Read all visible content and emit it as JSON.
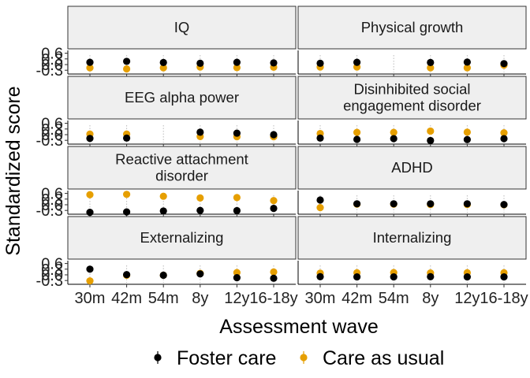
{
  "chart_data": {
    "type": "scatter",
    "xlabel": "Assessment wave",
    "ylabel": "Standardized score",
    "categories": [
      "30m",
      "42m",
      "54m",
      "8y",
      "12y",
      "16-18y"
    ],
    "ylim": [
      -0.5,
      0.75
    ],
    "yticks": [
      0.6,
      0.3,
      0.0,
      -0.3
    ],
    "ytick_labels": [
      "0.6",
      "0.3",
      "0.0",
      "-0.3"
    ],
    "legend": {
      "position": "bottom",
      "items": [
        {
          "label": "Foster care",
          "color": "#000000"
        },
        {
          "label": "Care as usual",
          "color": "#E69F00"
        }
      ]
    },
    "panels": [
      {
        "title": [
          "IQ"
        ],
        "series": [
          {
            "name": "Foster care",
            "values": [
              0.12,
              0.17,
              0.11,
              0.07,
              0.12,
              0.09
            ]
          },
          {
            "name": "Care as usual",
            "values": [
              -0.17,
              -0.23,
              -0.17,
              -0.13,
              -0.16,
              -0.14
            ]
          }
        ]
      },
      {
        "title": [
          "Physical growth"
        ],
        "series": [
          {
            "name": "Foster care",
            "values": [
              0.07,
              0.12,
              null,
              0.11,
              0.13,
              0.05
            ]
          },
          {
            "name": "Care as usual",
            "values": [
              -0.13,
              -0.13,
              null,
              -0.17,
              -0.17,
              -0.03
            ]
          }
        ]
      },
      {
        "title": [
          "EEG alpha power"
        ],
        "series": [
          {
            "name": "Foster care",
            "values": [
              -0.2,
              -0.18,
              null,
              0.13,
              0.08,
              0.0
            ]
          },
          {
            "name": "Care as usual",
            "values": [
              0.03,
              0.03,
              null,
              -0.1,
              -0.11,
              -0.11
            ]
          }
        ]
      },
      {
        "title": [
          "Disinhibited social",
          "engagement disorder"
        ],
        "series": [
          {
            "name": "Foster care",
            "values": [
              -0.18,
              -0.25,
              -0.21,
              -0.31,
              -0.26,
              -0.21
            ]
          },
          {
            "name": "Care as usual",
            "values": [
              0.06,
              0.12,
              0.12,
              0.19,
              0.13,
              0.1
            ]
          }
        ]
      },
      {
        "title": [
          "Reactive attachment",
          "disorder"
        ],
        "series": [
          {
            "name": "Foster care",
            "values": [
              -0.4,
              -0.38,
              -0.33,
              -0.3,
              -0.31,
              -0.19
            ]
          },
          {
            "name": "Care as usual",
            "values": [
              0.53,
              0.55,
              0.45,
              0.36,
              0.38,
              0.22
            ]
          }
        ]
      },
      {
        "title": [
          "ADHD"
        ],
        "series": [
          {
            "name": "Foster care",
            "values": [
              0.25,
              0.05,
              0.05,
              0.05,
              0.05,
              0.01
            ]
          },
          {
            "name": "Care as usual",
            "values": [
              -0.15,
              0.03,
              0.03,
              0.01,
              0.01,
              0.0
            ]
          }
        ]
      },
      {
        "title": [
          "Externalizing"
        ],
        "series": [
          {
            "name": "Foster care",
            "values": [
              0.3,
              0.01,
              -0.02,
              0.05,
              -0.15,
              -0.18
            ]
          },
          {
            "name": "Care as usual",
            "values": [
              -0.32,
              -0.02,
              -0.02,
              0.08,
              0.12,
              0.15
            ]
          }
        ]
      },
      {
        "title": [
          "Internalizing"
        ],
        "series": [
          {
            "name": "Foster care",
            "values": [
              -0.1,
              -0.11,
              -0.11,
              -0.1,
              -0.11,
              -0.11
            ]
          },
          {
            "name": "Care as usual",
            "values": [
              0.09,
              0.11,
              0.12,
              0.1,
              0.11,
              0.11
            ]
          }
        ]
      }
    ]
  }
}
